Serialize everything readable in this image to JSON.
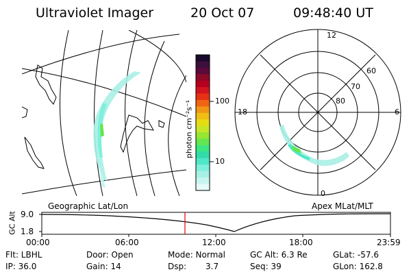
{
  "header": {
    "instrument": "Ultraviolet Imager",
    "date": "20 Oct 07",
    "time": "09:48:40 UT"
  },
  "colorbar": {
    "unit_label": "photon cm⁻²s⁻¹",
    "ticks": [
      "100",
      "10"
    ],
    "colors": [
      "#1a0a2a",
      "#3c0f3c",
      "#5a0a3a",
      "#8c0a28",
      "#b4001e",
      "#d2141e",
      "#e63214",
      "#f06414",
      "#f09614",
      "#f0be14",
      "#e6dc14",
      "#c8e628",
      "#96e632",
      "#64e650",
      "#3ce682",
      "#32dcaa",
      "#50e6c8",
      "#7ef0dc",
      "#a8f0e6",
      "#c8f5f0",
      "#e6fafa"
    ]
  },
  "left_panel": {
    "label": "Geographic Lat/Lon"
  },
  "right_panel": {
    "label": "Apex MLat/MLT",
    "mlt_labels": {
      "top": "12",
      "left": "18",
      "right": "6",
      "bottom": "0"
    },
    "lat_labels": [
      "60",
      "70",
      "80"
    ]
  },
  "timeline": {
    "ylabel": "GC Alt",
    "yticks": [
      "9.0",
      "1.8"
    ],
    "xticks": [
      "00:00",
      "06:00",
      "12:00",
      "18:00",
      "23:59"
    ],
    "marker_color": "#e00000"
  },
  "info": {
    "row1": [
      "Flt: LBHL",
      "Door: Open",
      "Mode: Normal",
      "GC Alt: 6.3 Re",
      "GLat: -57.6"
    ],
    "row2": [
      "IP: 36.0",
      "Gain: 14",
      "Dsp:",
      "3.7",
      "Seq: 39",
      "GLon: 162.8"
    ]
  }
}
